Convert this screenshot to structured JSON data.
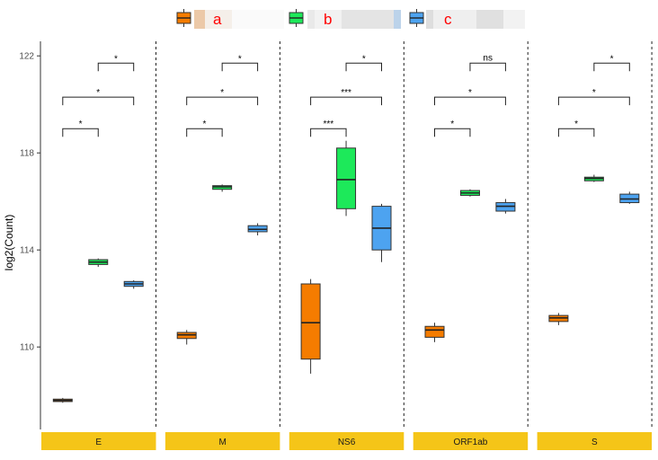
{
  "chart_data": {
    "type": "box",
    "ylabel": "log2(Count)",
    "ylim": [
      106.6,
      122.6
    ],
    "yticks": [
      110,
      114,
      118,
      122
    ],
    "facets": [
      "E",
      "M",
      "NS6",
      "ORF1ab",
      "S"
    ],
    "legend": {
      "position": "top",
      "entries": [
        {
          "label": "a",
          "color": "#f57c00"
        },
        {
          "label": "b",
          "color": "#1de95a"
        },
        {
          "label": "c",
          "color": "#4da3f0"
        }
      ]
    },
    "colors": {
      "strip": "#f5c518",
      "a": "#f57c00",
      "b": "#1de95a",
      "c": "#4da3f0"
    },
    "series": [
      {
        "name": "a",
        "boxes": [
          {
            "facet": "E",
            "min": 107.7,
            "q1": 107.75,
            "median": 107.8,
            "q3": 107.85,
            "max": 107.9
          },
          {
            "facet": "M",
            "min": 110.1,
            "q1": 110.35,
            "median": 110.5,
            "q3": 110.6,
            "max": 110.7
          },
          {
            "facet": "NS6",
            "min": 108.9,
            "q1": 109.5,
            "median": 111.0,
            "q3": 112.6,
            "max": 112.8
          },
          {
            "facet": "ORF1ab",
            "min": 110.2,
            "q1": 110.4,
            "median": 110.7,
            "q3": 110.85,
            "max": 111.0
          },
          {
            "facet": "S",
            "min": 110.9,
            "q1": 111.05,
            "median": 111.2,
            "q3": 111.3,
            "max": 111.4
          }
        ]
      },
      {
        "name": "b",
        "boxes": [
          {
            "facet": "E",
            "min": 113.3,
            "q1": 113.4,
            "median": 113.5,
            "q3": 113.6,
            "max": 113.65
          },
          {
            "facet": "M",
            "min": 116.4,
            "q1": 116.5,
            "median": 116.6,
            "q3": 116.65,
            "max": 116.7
          },
          {
            "facet": "NS6",
            "min": 115.4,
            "q1": 115.7,
            "median": 116.9,
            "q3": 118.2,
            "max": 118.5
          },
          {
            "facet": "ORF1ab",
            "min": 116.2,
            "q1": 116.25,
            "median": 116.35,
            "q3": 116.45,
            "max": 116.5
          },
          {
            "facet": "S",
            "min": 116.8,
            "q1": 116.85,
            "median": 116.95,
            "q3": 117.0,
            "max": 117.1
          }
        ]
      },
      {
        "name": "c",
        "boxes": [
          {
            "facet": "E",
            "min": 112.4,
            "q1": 112.5,
            "median": 112.6,
            "q3": 112.7,
            "max": 112.75
          },
          {
            "facet": "M",
            "min": 114.6,
            "q1": 114.75,
            "median": 114.85,
            "q3": 115.0,
            "max": 115.1
          },
          {
            "facet": "NS6",
            "min": 113.5,
            "q1": 114.0,
            "median": 114.9,
            "q3": 115.8,
            "max": 115.9
          },
          {
            "facet": "ORF1ab",
            "min": 115.5,
            "q1": 115.6,
            "median": 115.8,
            "q3": 115.95,
            "max": 116.1
          },
          {
            "facet": "S",
            "min": 115.9,
            "q1": 115.95,
            "median": 116.1,
            "q3": 116.3,
            "max": 116.4
          }
        ]
      }
    ],
    "comparisons": [
      {
        "facet": "E",
        "from": "a",
        "to": "b",
        "y": 119.0,
        "label": "*"
      },
      {
        "facet": "E",
        "from": "a",
        "to": "c",
        "y": 120.3,
        "label": "*"
      },
      {
        "facet": "E",
        "from": "b",
        "to": "c",
        "y": 121.7,
        "label": "*"
      },
      {
        "facet": "M",
        "from": "a",
        "to": "b",
        "y": 119.0,
        "label": "*"
      },
      {
        "facet": "M",
        "from": "a",
        "to": "c",
        "y": 120.3,
        "label": "*"
      },
      {
        "facet": "M",
        "from": "b",
        "to": "c",
        "y": 121.7,
        "label": "*"
      },
      {
        "facet": "NS6",
        "from": "a",
        "to": "b",
        "y": 119.0,
        "label": "***"
      },
      {
        "facet": "NS6",
        "from": "a",
        "to": "c",
        "y": 120.3,
        "label": "***"
      },
      {
        "facet": "NS6",
        "from": "b",
        "to": "c",
        "y": 121.7,
        "label": "*"
      },
      {
        "facet": "ORF1ab",
        "from": "a",
        "to": "b",
        "y": 119.0,
        "label": "*"
      },
      {
        "facet": "ORF1ab",
        "from": "a",
        "to": "c",
        "y": 120.3,
        "label": "*"
      },
      {
        "facet": "ORF1ab",
        "from": "b",
        "to": "c",
        "y": 121.7,
        "label": "ns"
      },
      {
        "facet": "S",
        "from": "a",
        "to": "b",
        "y": 119.0,
        "label": "*"
      },
      {
        "facet": "S",
        "from": "a",
        "to": "c",
        "y": 120.3,
        "label": "*"
      },
      {
        "facet": "S",
        "from": "b",
        "to": "c",
        "y": 121.7,
        "label": "*"
      }
    ]
  }
}
